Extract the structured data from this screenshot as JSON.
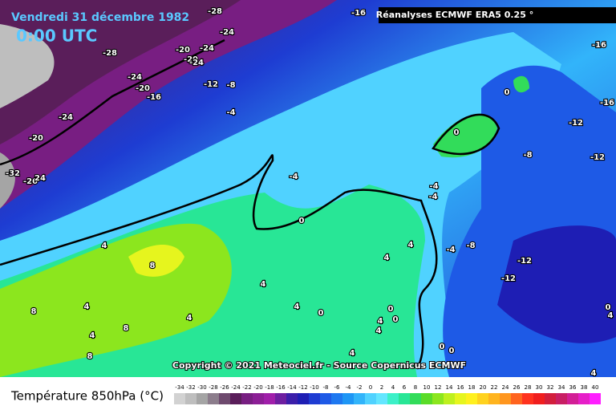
{
  "header": {
    "date": "Vendredi 31 décembre 1982",
    "time": "0:00 UTC",
    "source_box": "Réanalyses ECMWF ERA5 0.25 °"
  },
  "copyright": "Copyright © 2021 Meteociel.fr - Source Copernicus ECMWF",
  "legend": {
    "title": "Température 850hPa (°C)",
    "ticks": [
      -34,
      -32,
      -30,
      -28,
      -26,
      -24,
      -22,
      -20,
      -18,
      -16,
      -14,
      -12,
      -10,
      -8,
      -6,
      -4,
      -2,
      0,
      2,
      4,
      6,
      8,
      10,
      12,
      14,
      16,
      18,
      20,
      22,
      24,
      26,
      28,
      30,
      32,
      34,
      36,
      38,
      40
    ],
    "colors": [
      "#d2d2d2",
      "#bebebe",
      "#a5a5a5",
      "#8c7d8c",
      "#6e4a6e",
      "#5a1e5a",
      "#781e82",
      "#8c1e96",
      "#a01eaa",
      "#6e1ea0",
      "#3c1eaa",
      "#1e1eb4",
      "#1e3cd2",
      "#1e5ae6",
      "#1e78f0",
      "#1e96f5",
      "#32b4fa",
      "#50d2ff",
      "#64e6ff",
      "#3cf0c8",
      "#28e696",
      "#32dc5a",
      "#5adc28",
      "#8ce61e",
      "#bef01e",
      "#e6f51e",
      "#fff01e",
      "#ffd21e",
      "#ffb41e",
      "#ff961e",
      "#ff641e",
      "#ff321e",
      "#f01e1e",
      "#d21e3c",
      "#c81e64",
      "#d21e96",
      "#e61ec8",
      "#ff1eff"
    ]
  },
  "contour_labels": [
    "-28",
    "-16",
    "-24",
    "-28",
    "-20",
    "-24",
    "-20",
    "-24",
    "-24",
    "-20",
    "-16",
    "-12",
    "-8",
    "-24",
    "-20",
    "-32",
    "-26",
    "24",
    "-4",
    "-4",
    "0",
    "4",
    "8",
    "4",
    "4",
    "4",
    "-4",
    "-4",
    "0",
    "0",
    "-8",
    "-12",
    "-12",
    "-16",
    "-16",
    "-8",
    "-4",
    "-12",
    "-12",
    "4",
    "8",
    "8",
    "4",
    "4",
    "0",
    "0",
    "4",
    "0",
    "4",
    "4",
    "8",
    "4",
    "0",
    "0",
    "4",
    "0",
    "4"
  ]
}
